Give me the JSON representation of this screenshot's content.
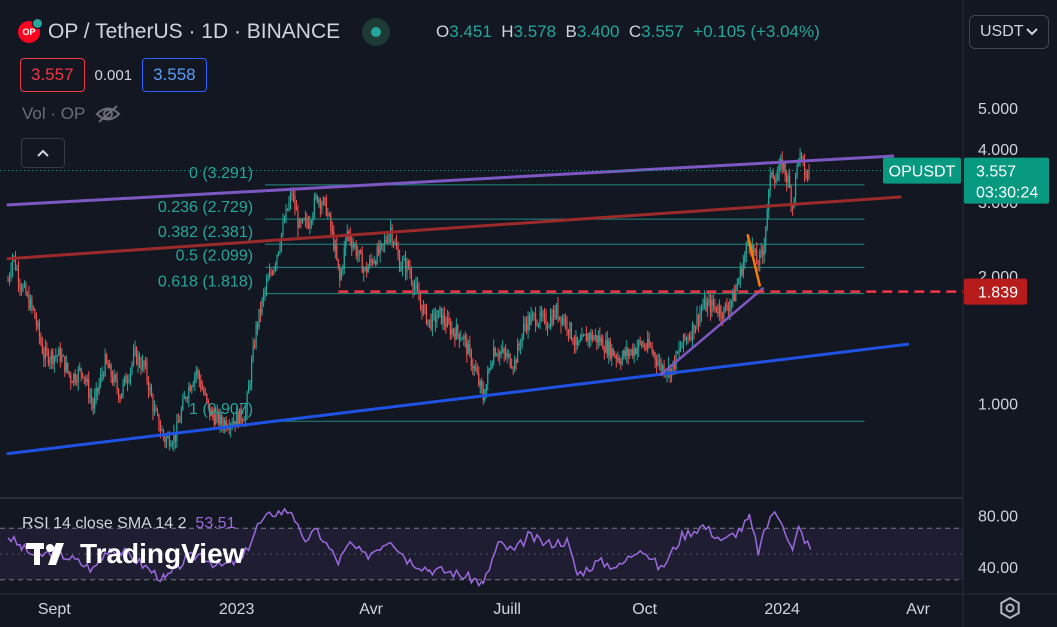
{
  "header": {
    "symbol": "OP / TetherUS",
    "interval": "1D",
    "exchange": "BINANCE",
    "full_title": "OP / TetherUS · 1D · BINANCE",
    "logo_text": "OP",
    "ohlc": {
      "o_label": "O",
      "o": "3.451",
      "h_label": "H",
      "h": "3.578",
      "b_label": "B",
      "b": "3.400",
      "c_label": "C",
      "c": "3.557",
      "change": "+0.105 (+3.04%)"
    }
  },
  "order_bar": {
    "sell": "3.557",
    "spread": "0.001",
    "buy": "3.558"
  },
  "volume_legend": {
    "label": "Vol · OP",
    "icon": "eye-off-icon"
  },
  "currency_selector": {
    "value": "USDT",
    "icon": "chevron-down-icon"
  },
  "rsi_legend": {
    "text": "RSI 14 close SMA 14 2",
    "value": "53.51"
  },
  "watermark": {
    "text": "TradingView",
    "icon": "tradingview-logo-icon"
  },
  "settings_icon": "gear-icon",
  "colors": {
    "background": "#131722",
    "up": "#26a69a",
    "down": "#ef5350",
    "fib": "#26a69a",
    "purple_line": "#7e57c2",
    "red_line": "#9c2a2a",
    "blue_line": "#1e53e5",
    "rsi": "#9c6ade",
    "last_price_label": "#089981",
    "horizontal_label": "#b71c1c"
  },
  "chart_data": [
    {
      "type": "candlestick",
      "title": "OP / TetherUS · 1D · BINANCE",
      "y_scale": "log",
      "y_axis_ticks": [
        "5.000",
        "4.000",
        "3.000",
        "2.000",
        "1.000"
      ],
      "y_axis_tick_values": [
        5,
        4,
        3,
        2,
        1
      ],
      "x_axis_ticks": [
        "Sept",
        "2023",
        "Avr",
        "Juill",
        "Oct",
        "2024",
        "Avr"
      ],
      "x_axis_tick_dates": [
        "2022-09-01",
        "2023-01-01",
        "2023-04-01",
        "2023-07-01",
        "2023-10-01",
        "2024-01-01",
        "2024-04-01"
      ],
      "x_range": [
        "2022-08-01",
        "2024-05-01"
      ],
      "y_range": [
        0.6,
        6.5
      ],
      "close_path": [
        [
          "2022-08-01",
          1.95
        ],
        [
          "2022-08-04",
          2.25
        ],
        [
          "2022-08-10",
          1.9
        ],
        [
          "2022-08-18",
          1.65
        ],
        [
          "2022-08-25",
          1.3
        ],
        [
          "2022-09-05",
          1.3
        ],
        [
          "2022-09-12",
          1.15
        ],
        [
          "2022-09-20",
          1.2
        ],
        [
          "2022-09-27",
          0.98
        ],
        [
          "2022-10-05",
          1.25
        ],
        [
          "2022-10-15",
          1.05
        ],
        [
          "2022-10-25",
          1.3
        ],
        [
          "2022-11-01",
          1.2
        ],
        [
          "2022-11-07",
          0.95
        ],
        [
          "2022-11-14",
          0.82
        ],
        [
          "2022-11-21",
          0.84
        ],
        [
          "2022-11-28",
          1.05
        ],
        [
          "2022-12-05",
          1.2
        ],
        [
          "2022-12-14",
          0.95
        ],
        [
          "2022-12-22",
          0.9
        ],
        [
          "2023-01-01",
          0.92
        ],
        [
          "2023-01-07",
          0.95
        ],
        [
          "2023-01-14",
          1.5
        ],
        [
          "2023-01-20",
          1.85
        ],
        [
          "2023-01-27",
          2.2
        ],
        [
          "2023-02-02",
          2.7
        ],
        [
          "2023-02-07",
          3.15
        ],
        [
          "2023-02-12",
          2.6
        ],
        [
          "2023-02-18",
          2.7
        ],
        [
          "2023-02-24",
          3.1
        ],
        [
          "2023-03-02",
          2.9
        ],
        [
          "2023-03-07",
          2.4
        ],
        [
          "2023-03-11",
          1.95
        ],
        [
          "2023-03-16",
          2.55
        ],
        [
          "2023-03-21",
          2.35
        ],
        [
          "2023-03-28",
          2.05
        ],
        [
          "2023-04-02",
          2.2
        ],
        [
          "2023-04-08",
          2.3
        ],
        [
          "2023-04-14",
          2.6
        ],
        [
          "2023-04-20",
          2.15
        ],
        [
          "2023-04-26",
          2.1
        ],
        [
          "2023-05-03",
          1.75
        ],
        [
          "2023-05-10",
          1.55
        ],
        [
          "2023-05-17",
          1.62
        ],
        [
          "2023-05-24",
          1.5
        ],
        [
          "2023-06-01",
          1.45
        ],
        [
          "2023-06-10",
          1.18
        ],
        [
          "2023-06-15",
          1.03
        ],
        [
          "2023-06-22",
          1.35
        ],
        [
          "2023-06-29",
          1.3
        ],
        [
          "2023-07-06",
          1.25
        ],
        [
          "2023-07-13",
          1.55
        ],
        [
          "2023-07-20",
          1.6
        ],
        [
          "2023-07-27",
          1.55
        ],
        [
          "2023-08-03",
          1.65
        ],
        [
          "2023-08-10",
          1.55
        ],
        [
          "2023-08-17",
          1.35
        ],
        [
          "2023-08-24",
          1.45
        ],
        [
          "2023-08-31",
          1.42
        ],
        [
          "2023-09-07",
          1.35
        ],
        [
          "2023-09-14",
          1.28
        ],
        [
          "2023-09-21",
          1.32
        ],
        [
          "2023-09-28",
          1.38
        ],
        [
          "2023-10-05",
          1.35
        ],
        [
          "2023-10-12",
          1.22
        ],
        [
          "2023-10-19",
          1.2
        ],
        [
          "2023-10-26",
          1.38
        ],
        [
          "2023-11-02",
          1.5
        ],
        [
          "2023-11-09",
          1.7
        ],
        [
          "2023-11-16",
          1.7
        ],
        [
          "2023-11-23",
          1.65
        ],
        [
          "2023-11-30",
          1.8
        ],
        [
          "2023-12-05",
          2.1
        ],
        [
          "2023-12-10",
          2.45
        ],
        [
          "2023-12-15",
          2.15
        ],
        [
          "2023-12-19",
          2.25
        ],
        [
          "2023-12-22",
          2.9
        ],
        [
          "2023-12-25",
          3.6
        ],
        [
          "2023-12-28",
          3.4
        ],
        [
          "2024-01-01",
          3.7
        ],
        [
          "2024-01-05",
          3.35
        ],
        [
          "2024-01-08",
          2.95
        ],
        [
          "2024-01-12",
          3.9
        ],
        [
          "2024-01-17",
          3.45
        ],
        [
          "2024-01-20",
          3.557
        ]
      ],
      "trendlines": [
        {
          "name": "purple-channel-top",
          "color": "#7e57c2",
          "from": [
            "2022-08-01",
            2.95
          ],
          "to": [
            "2024-03-15",
            3.85
          ]
        },
        {
          "name": "red-channel-mid",
          "color": "#9c2a2a",
          "from": [
            "2022-08-01",
            2.2
          ],
          "to": [
            "2024-03-20",
            3.08
          ]
        },
        {
          "name": "blue-channel-bottom",
          "color": "#1e53e5",
          "from": [
            "2022-08-01",
            0.76
          ],
          "to": [
            "2024-03-25",
            1.38
          ]
        },
        {
          "name": "purple-rising-support",
          "color": "#7e57c2",
          "from": [
            "2023-10-12",
            1.17
          ],
          "to": [
            "2023-12-19",
            1.87
          ]
        },
        {
          "name": "orange-pullback-line",
          "color": "#f57c00",
          "from": [
            "2023-12-09",
            2.5
          ],
          "to": [
            "2023-12-17",
            1.9
          ]
        }
      ],
      "fibonacci": {
        "color": "#26a69a",
        "levels": [
          {
            "label": "0 (3.291)",
            "ratio": 0,
            "price": 3.291
          },
          {
            "label": "0.236 (2.729)",
            "ratio": 0.236,
            "price": 2.729
          },
          {
            "label": "0.382 (2.381)",
            "ratio": 0.382,
            "price": 2.381
          },
          {
            "label": "0.5 (2.099)",
            "ratio": 0.5,
            "price": 2.099
          },
          {
            "label": "0.618 (1.818)",
            "ratio": 0.618,
            "price": 1.818
          },
          {
            "label": "1 (0.907)",
            "ratio": 1,
            "price": 0.907
          }
        ],
        "from_date": "2023-01-20",
        "to_date": "2024-02-25"
      },
      "horizontal_line": {
        "price": 1.839,
        "label": "1.839",
        "style": "dashed",
        "color": "#f23645",
        "from_date": "2023-03-10"
      },
      "last_price": {
        "symbol": "OPUSDT",
        "price": 3.557,
        "label": "3.557",
        "countdown": "03:30:24"
      }
    },
    {
      "type": "line",
      "title": "RSI 14 close SMA 14 2",
      "last_value": 53.51,
      "y_axis_ticks": [
        "80.00",
        "40.00"
      ],
      "y_axis_tick_values": [
        80,
        40
      ],
      "bands": {
        "upper": 70,
        "mid": 50,
        "lower": 30
      },
      "y_range": [
        22,
        92
      ],
      "series": [
        {
          "values": [
            [
              "2022-08-01",
              64
            ],
            [
              "2022-08-10",
              55
            ],
            [
              "2022-08-20",
              48
            ],
            [
              "2022-09-01",
              52
            ],
            [
              "2022-09-15",
              45
            ],
            [
              "2022-09-27",
              38
            ],
            [
              "2022-10-08",
              55
            ],
            [
              "2022-10-20",
              50
            ],
            [
              "2022-11-07",
              35
            ],
            [
              "2022-11-14",
              30
            ],
            [
              "2022-11-28",
              46
            ],
            [
              "2022-12-08",
              50
            ],
            [
              "2022-12-20",
              40
            ],
            [
              "2023-01-05",
              46
            ],
            [
              "2023-01-15",
              72
            ],
            [
              "2023-01-25",
              82
            ],
            [
              "2023-02-07",
              84
            ],
            [
              "2023-02-14",
              60
            ],
            [
              "2023-02-24",
              68
            ],
            [
              "2023-03-10",
              44
            ],
            [
              "2023-03-18",
              58
            ],
            [
              "2023-03-28",
              48
            ],
            [
              "2023-04-14",
              62
            ],
            [
              "2023-04-25",
              46
            ],
            [
              "2023-05-10",
              38
            ],
            [
              "2023-05-24",
              36
            ],
            [
              "2023-06-10",
              30
            ],
            [
              "2023-06-15",
              26
            ],
            [
              "2023-06-25",
              58
            ],
            [
              "2023-07-06",
              52
            ],
            [
              "2023-07-15",
              64
            ],
            [
              "2023-07-27",
              58
            ],
            [
              "2023-08-10",
              60
            ],
            [
              "2023-08-17",
              34
            ],
            [
              "2023-08-31",
              44
            ],
            [
              "2023-09-14",
              40
            ],
            [
              "2023-09-28",
              56
            ],
            [
              "2023-10-12",
              38
            ],
            [
              "2023-10-26",
              64
            ],
            [
              "2023-11-09",
              72
            ],
            [
              "2023-11-23",
              60
            ],
            [
              "2023-12-05",
              70
            ],
            [
              "2023-12-10",
              78
            ],
            [
              "2023-12-16",
              52
            ],
            [
              "2023-12-25",
              82
            ],
            [
              "2024-01-01",
              76
            ],
            [
              "2024-01-08",
              52
            ],
            [
              "2024-01-12",
              70
            ],
            [
              "2024-01-20",
              53.51
            ]
          ]
        }
      ]
    }
  ]
}
